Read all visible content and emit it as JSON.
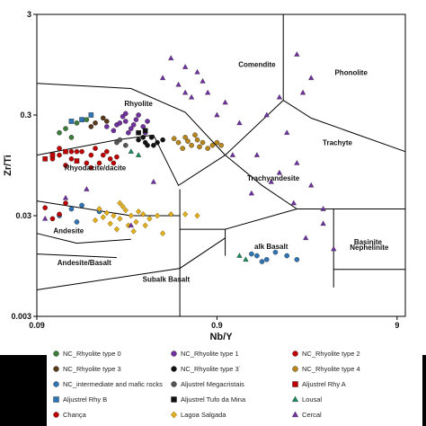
{
  "chart_data": {
    "type": "scatter",
    "title": "",
    "xlabel": "Nb/Y",
    "ylabel": "Zr/Ti",
    "xscale": "log",
    "yscale": "log",
    "xlim": [
      0.09,
      10
    ],
    "ylim": [
      0.003,
      3
    ],
    "x_ticks": [
      "0.09",
      "0.9",
      "9"
    ],
    "y_ticks": [
      "3",
      "0.3",
      "0.03",
      "0.003"
    ],
    "grid": false,
    "legend_placement": "bottom",
    "field_labels": [
      "Comendite",
      "Phonolite",
      "Rhyolite",
      "Trachyte",
      "Rhyodacite/dacite",
      "Trachyandesite",
      "Andesite",
      "alk Basalt",
      "Andesite/Basalt",
      "Basinite",
      "Nephelinite",
      "Subalk Basalt"
    ],
    "series": [
      {
        "name": "NC_Rhyolite type 0",
        "color": "#3a7d3a",
        "marker": "circle",
        "points": [
          [
            0.13,
            0.22
          ],
          [
            0.15,
            0.25
          ],
          [
            0.12,
            0.2
          ],
          [
            0.17,
            0.27
          ],
          [
            0.14,
            0.18
          ]
        ]
      },
      {
        "name": "NC_Rhyolite type 1",
        "color": "#7030a0",
        "marker": "circle",
        "points": [
          [
            0.25,
            0.24
          ],
          [
            0.28,
            0.26
          ],
          [
            0.3,
            0.22
          ],
          [
            0.32,
            0.27
          ],
          [
            0.27,
            0.29
          ],
          [
            0.35,
            0.23
          ],
          [
            0.29,
            0.2
          ],
          [
            0.24,
            0.21
          ],
          [
            0.33,
            0.3
          ],
          [
            0.26,
            0.25
          ],
          [
            0.31,
            0.24
          ],
          [
            0.37,
            0.26
          ],
          [
            0.22,
            0.23
          ],
          [
            0.28,
            0.31
          ],
          [
            0.36,
            0.2
          ]
        ]
      },
      {
        "name": "NC_Rhyolite type 2",
        "color": "#c00000",
        "marker": "circle",
        "points": [
          [
            0.12,
            0.12
          ],
          [
            0.14,
            0.11
          ],
          [
            0.16,
            0.13
          ],
          [
            0.18,
            0.12
          ],
          [
            0.2,
            0.1
          ],
          [
            0.13,
            0.095
          ],
          [
            0.15,
            0.13
          ],
          [
            0.19,
            0.14
          ],
          [
            0.21,
            0.12
          ],
          [
            0.23,
            0.11
          ],
          [
            0.17,
            0.1
          ],
          [
            0.11,
            0.11
          ],
          [
            0.22,
            0.13
          ],
          [
            0.25,
            0.115
          ],
          [
            0.14,
            0.13
          ],
          [
            0.24,
            0.1
          ],
          [
            0.12,
            0.14
          ],
          [
            0.18,
            0.09
          ]
        ]
      },
      {
        "name": "NC_Rhyolite type 3",
        "color": "#5a3a1a",
        "marker": "circle",
        "points": [
          [
            0.19,
            0.25
          ],
          [
            0.21,
            0.28
          ],
          [
            0.18,
            0.23
          ],
          [
            0.22,
            0.26
          ]
        ]
      },
      {
        "name": "NC_Rhyolite type 3´",
        "color": "#111111",
        "marker": "circle",
        "points": [
          [
            0.33,
            0.17
          ],
          [
            0.36,
            0.16
          ],
          [
            0.39,
            0.18
          ],
          [
            0.42,
            0.16
          ],
          [
            0.37,
            0.15
          ],
          [
            0.45,
            0.17
          ],
          [
            0.35,
            0.18
          ],
          [
            0.4,
            0.15
          ]
        ]
      },
      {
        "name": "NC_Rhyolite type 4",
        "color": "#b8861a",
        "marker": "circle",
        "points": [
          [
            0.55,
            0.16
          ],
          [
            0.6,
            0.18
          ],
          [
            0.65,
            0.15
          ],
          [
            0.7,
            0.17
          ],
          [
            0.75,
            0.16
          ],
          [
            0.8,
            0.14
          ],
          [
            0.58,
            0.14
          ],
          [
            0.68,
            0.19
          ],
          [
            0.85,
            0.15
          ],
          [
            0.9,
            0.16
          ],
          [
            0.62,
            0.165
          ],
          [
            0.72,
            0.145
          ],
          [
            0.95,
            0.15
          ],
          [
            0.52,
            0.175
          ]
        ]
      },
      {
        "name": "NC_intermediate and mafic rocks",
        "color": "#2e75b6",
        "marker": "circle",
        "points": [
          [
            0.14,
            0.035
          ],
          [
            0.12,
            0.03
          ],
          [
            0.16,
            0.038
          ],
          [
            0.2,
            0.033
          ],
          [
            0.15,
            0.026
          ],
          [
            1.5,
            0.012
          ],
          [
            1.7,
            0.011
          ],
          [
            1.9,
            0.013
          ],
          [
            2.2,
            0.012
          ],
          [
            1.6,
            0.0105
          ],
          [
            2.5,
            0.011
          ],
          [
            1.4,
            0.0125
          ]
        ]
      },
      {
        "name": "Aljustrel Megacristais",
        "color": "#555555",
        "marker": "circle",
        "points": [
          [
            0.25,
            0.16
          ],
          [
            0.28,
            0.15
          ],
          [
            0.26,
            0.17
          ]
        ]
      },
      {
        "name": "Aljustrel Rhy A",
        "color": "#c00000",
        "marker": "square",
        "points": [
          [
            0.11,
            0.12
          ],
          [
            0.13,
            0.13
          ],
          [
            0.1,
            0.11
          ],
          [
            0.15,
            0.105
          ]
        ]
      },
      {
        "name": "Aljustrel Rhy B",
        "color": "#2e75b6",
        "marker": "square",
        "points": [
          [
            0.16,
            0.27
          ],
          [
            0.18,
            0.3
          ],
          [
            0.14,
            0.26
          ]
        ]
      },
      {
        "name": "Aljustrel Tufo da Mina",
        "color": "#111111",
        "marker": "square",
        "points": [
          [
            0.33,
            0.2
          ],
          [
            0.36,
            0.21
          ]
        ]
      },
      {
        "name": "Lousal",
        "color": "#1a8a5a",
        "marker": "triangle",
        "points": [
          [
            0.3,
            0.13
          ],
          [
            0.33,
            0.12
          ],
          [
            1.3,
            0.011
          ],
          [
            1.2,
            0.012
          ]
        ]
      },
      {
        "name": "Chança",
        "color": "#c00000",
        "marker": "circle",
        "points": [
          [
            0.1,
            0.036
          ],
          [
            0.11,
            0.028
          ],
          [
            0.12,
            0.031
          ],
          [
            0.13,
            0.04
          ]
        ]
      },
      {
        "name": "Lagoa Salgada",
        "color": "#e0b020",
        "marker": "diamond",
        "points": [
          [
            0.2,
            0.035
          ],
          [
            0.22,
            0.032
          ],
          [
            0.24,
            0.03
          ],
          [
            0.26,
            0.028
          ],
          [
            0.28,
            0.034
          ],
          [
            0.3,
            0.03
          ],
          [
            0.32,
            0.026
          ],
          [
            0.23,
            0.025
          ],
          [
            0.27,
            0.037
          ],
          [
            0.35,
            0.031
          ],
          [
            0.25,
            0.022
          ],
          [
            0.29,
            0.024
          ],
          [
            0.21,
            0.029
          ],
          [
            0.33,
            0.033
          ],
          [
            0.38,
            0.028
          ],
          [
            0.26,
            0.04
          ],
          [
            0.31,
            0.021
          ],
          [
            0.19,
            0.027
          ],
          [
            0.36,
            0.024
          ],
          [
            0.42,
            0.03
          ],
          [
            0.5,
            0.031
          ],
          [
            0.6,
            0.031
          ],
          [
            0.7,
            0.03
          ],
          [
            0.45,
            0.02
          ]
        ]
      },
      {
        "name": "Cercal",
        "color": "#7030a0",
        "marker": "triangle",
        "points": [
          [
            0.5,
            1.1
          ],
          [
            0.6,
            0.9
          ],
          [
            0.7,
            0.8
          ],
          [
            0.55,
            0.6
          ],
          [
            0.8,
            0.5
          ],
          [
            0.65,
            0.45
          ],
          [
            0.45,
            0.7
          ],
          [
            0.75,
            0.65
          ],
          [
            2.5,
            1.2
          ],
          [
            3.0,
            0.7
          ],
          [
            2.7,
            0.5
          ],
          [
            2.0,
            0.45
          ],
          [
            1.7,
            0.3
          ],
          [
            2.2,
            0.2
          ],
          [
            1.5,
            0.12
          ],
          [
            2.5,
            0.1
          ],
          [
            2.0,
            0.08
          ],
          [
            1.8,
            0.065
          ],
          [
            3.0,
            0.06
          ],
          [
            1.4,
            0.05
          ],
          [
            2.4,
            0.04
          ],
          [
            3.5,
            0.035
          ],
          [
            0.6,
            0.5
          ],
          [
            1.0,
            0.4
          ],
          [
            1.2,
            0.25
          ],
          [
            0.9,
            0.3
          ],
          [
            0.1,
            0.028
          ],
          [
            0.13,
            0.045
          ],
          [
            0.17,
            0.055
          ],
          [
            0.3,
            0.024
          ],
          [
            0.4,
            0.065
          ],
          [
            1.1,
            0.12
          ],
          [
            2.8,
            0.018
          ],
          [
            3.5,
            0.025
          ],
          [
            4.0,
            0.014
          ]
        ]
      }
    ],
    "legend": [
      {
        "label": "NC_Rhyolite type 0",
        "color": "#3a7d3a",
        "marker": "circle"
      },
      {
        "label": "NC_Rhyolite type 1",
        "color": "#7030a0",
        "marker": "circle"
      },
      {
        "label": "NC_Rhyolite type 2",
        "color": "#c00000",
        "marker": "circle"
      },
      {
        "label": "NC_Rhyolite type 3",
        "color": "#5a3a1a",
        "marker": "circle"
      },
      {
        "label": "NC_Rhyolite type 3´",
        "color": "#111111",
        "marker": "circle"
      },
      {
        "label": "NC_Rhyolite type 4",
        "color": "#b8861a",
        "marker": "circle"
      },
      {
        "label": "NC_intermediate and mafic rocks",
        "color": "#2e75b6",
        "marker": "circle"
      },
      {
        "label": "Aljustrel Megacristais",
        "color": "#555555",
        "marker": "circle"
      },
      {
        "label": "Aljustrel Rhy A",
        "color": "#c00000",
        "marker": "square"
      },
      {
        "label": "Aljustrel Rhy B",
        "color": "#2e75b6",
        "marker": "square"
      },
      {
        "label": "Aljustrel Tufo da Mina",
        "color": "#111111",
        "marker": "square"
      },
      {
        "label": "Lousal",
        "color": "#1a8a5a",
        "marker": "triangle"
      },
      {
        "label": "Chança",
        "color": "#c00000",
        "marker": "circle"
      },
      {
        "label": "Lagoa Salgada",
        "color": "#e0b020",
        "marker": "diamond"
      },
      {
        "label": "Cercal",
        "color": "#7030a0",
        "marker": "triangle"
      }
    ]
  }
}
